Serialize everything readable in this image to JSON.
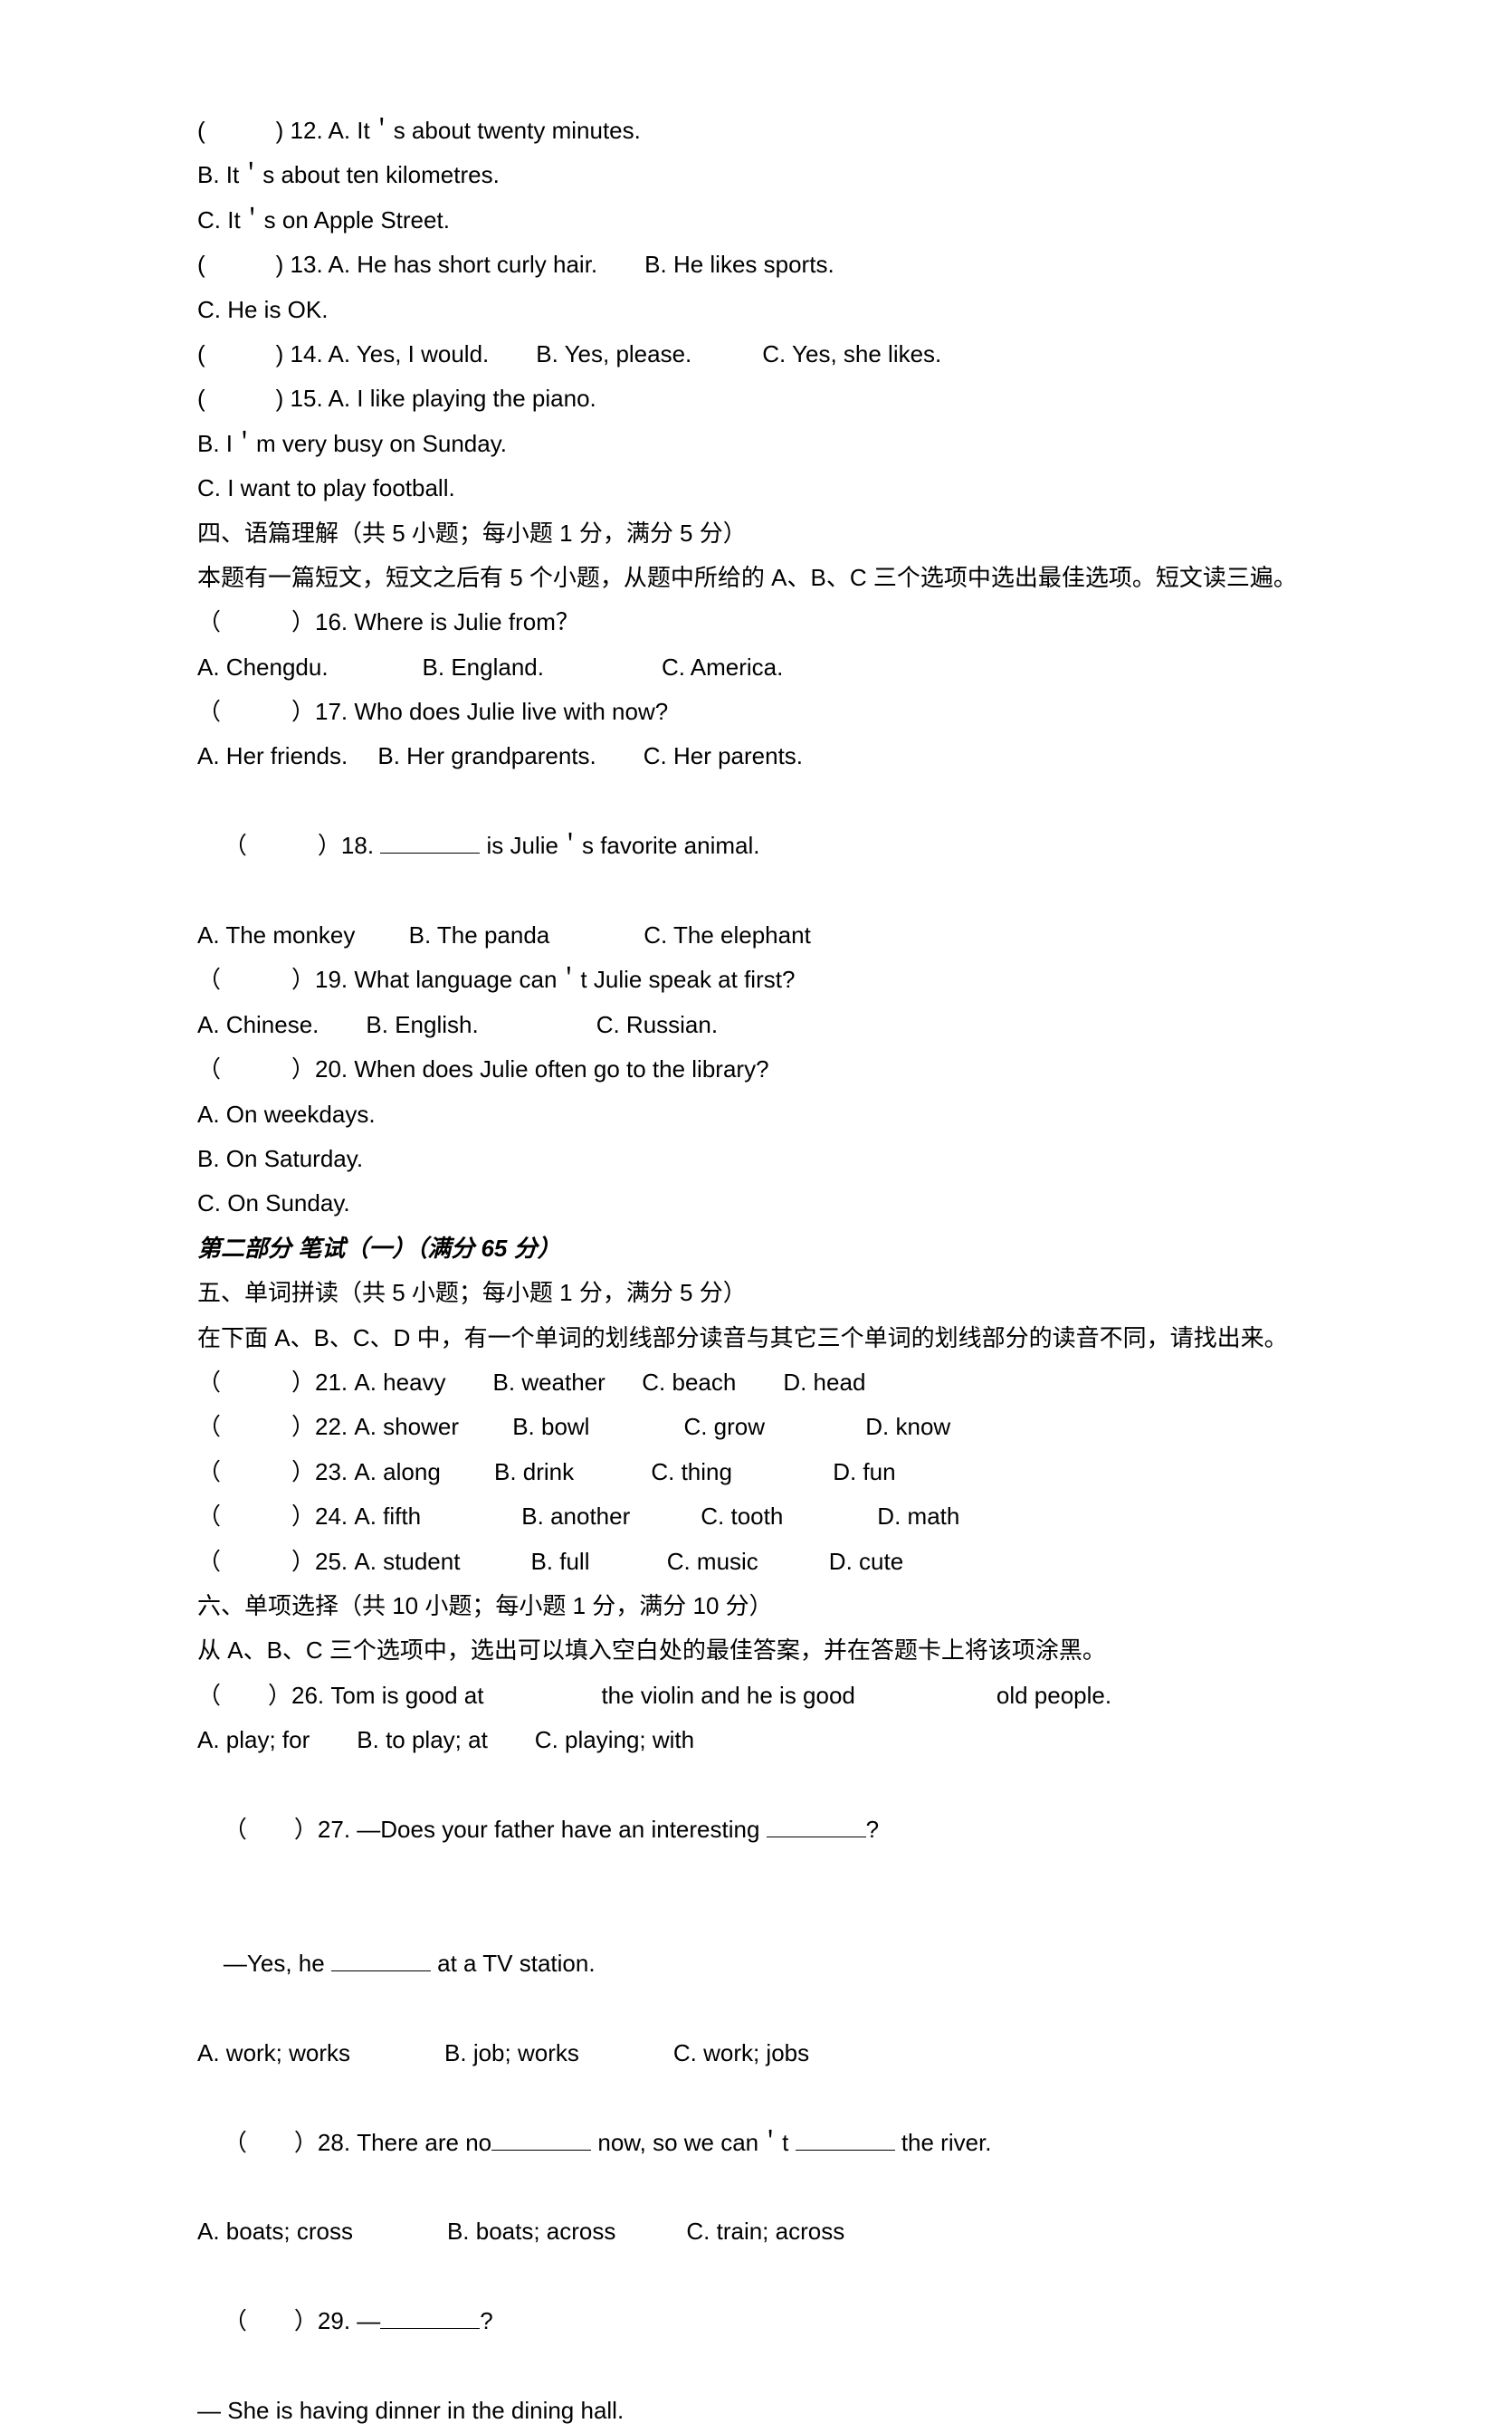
{
  "q12": {
    "prefix": "(　　　) 12. A. It＇s about twenty minutes.",
    "b": "B. It＇s about ten kilometres.",
    "c": "C. It＇s on Apple Street."
  },
  "q13": {
    "row1": "(　　　) 13. A. He has short curly hair.　　B. He likes sports.",
    "c": "C. He is OK."
  },
  "q14": "(　　　) 14. A. Yes, I would.　　B. Yes, please.　　　C. Yes, she likes.",
  "q15": {
    "a": "(　　　) 15. A. I like playing the piano.",
    "b": "B. I＇m very busy on Sunday.",
    "c": "C. I want to play football."
  },
  "section4": {
    "title": "四、语篇理解（共 5 小题；每小题 1 分，满分 5 分）",
    "intro": "本题有一篇短文，短文之后有 5 个小题，从题中所给的 A、B、C 三个选项中选出最佳选项。短文读三遍。"
  },
  "q16": {
    "q": "（　　　）16. Where is Julie from？",
    "opts": "A. Chengdu.　　　　B. England.　　　　　C. America."
  },
  "q17": {
    "q": "（　　　）17. Who does Julie live with now?",
    "opts": "A. Her friends.　 B. Her grandparents.　　C. Her parents."
  },
  "q18": {
    "pre": "（　　　）18. ",
    "post": " is Julie＇s favorite animal.",
    "opts": "A. The monkey　　 B. The panda　　　　C. The elephant"
  },
  "q19": {
    "q": "（　　　）19. What language can＇t Julie speak at first?",
    "opts": "A. Chinese.　　B. English.　　　　　C. Russian."
  },
  "q20": {
    "q": "（　　　）20. When does Julie often go to the library?",
    "a": "A. On weekdays.",
    "b": "B. On Saturday.",
    "c": "C. On Sunday."
  },
  "part2": "第二部分 笔试（一）（满分 65 分）",
  "section5": {
    "title": "五、单词拼读（共 5 小题；每小题 1 分，满分 5 分）",
    "intro": "在下面 A、B、C、D 中，有一个单词的划线部分读音与其它三个单词的划线部分的读音不同，请找出来。"
  },
  "q21": "（　　　）21. A. heavy　　B. weather　  C. beach　　D. head",
  "q22": "（　　　）22. A. shower　　 B. bowl　　　　C. grow　　　　 D. know",
  "q23": "（　　　）23. A. along　　 B. drink　　　 C. thing　　　　 D. fun",
  "q24": "（　　　）24. A. fifth　　　　 B. another　　　C. tooth　　　　D. math",
  "q25": "（　　　）25. A. student　　　B. full　　　 C. music　　　D. cute",
  "section6": {
    "title": "六、单项选择（共 10 小题；每小题 1 分，满分 10 分）",
    "intro": "从 A、B、C 三个选项中，选出可以填入空白处的最佳答案，并在答题卡上将该项涂黑。"
  },
  "q26": {
    "q": "（　　）26. Tom is good at　　　　　the violin and he is good　　　　　　old people.",
    "opts": "A. play; for　　B. to play; at　　C. playing; with"
  },
  "q27": {
    "pre": "（　　）27. —Does your father have an interesting ",
    "post": "?",
    "ans_pre": "—Yes, he ",
    "ans_post": " at a TV station.",
    "opts": "A. work; works　　　　B. job; works　　　　C. work; jobs"
  },
  "q28": {
    "pre": "（　　）28. There are no",
    "mid": " now, so we can＇t ",
    "post": " the river.",
    "opts": "A. boats; cross　　　　B. boats; across　　　C. train; across"
  },
  "q29": {
    "pre": "（　　）29. —",
    "post": "?",
    "ans": "— She is having dinner in the dining hall."
  }
}
